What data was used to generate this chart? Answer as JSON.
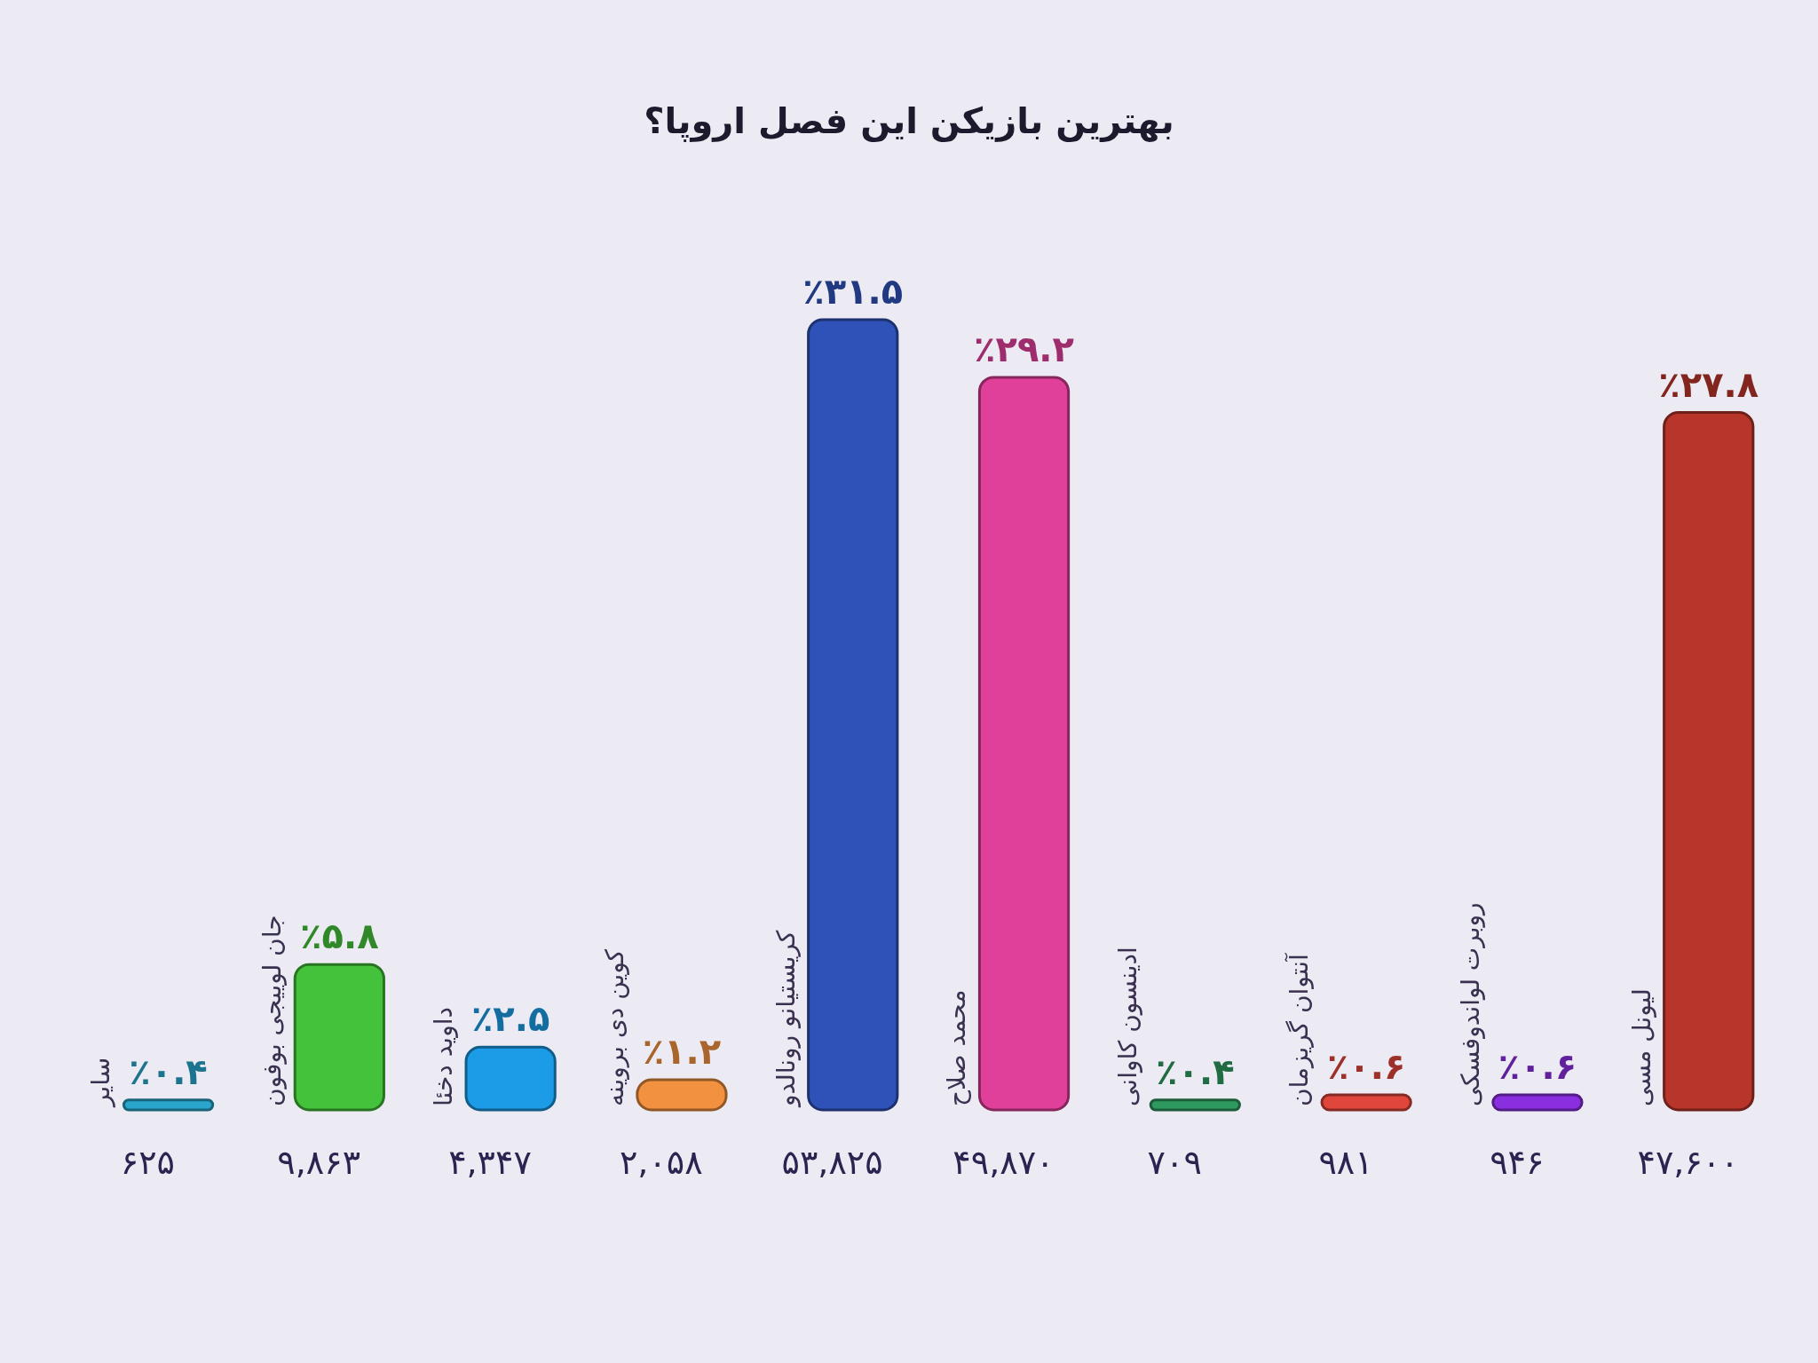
{
  "chart_data": {
    "type": "bar",
    "title": "بهترین بازیکن این فصل اروپا؟",
    "categories": [
      "سایر",
      "جان لوییجی بوفون",
      "داوید دخئا",
      "کوین دی بروینه",
      "کریستیانو رونالدو",
      "محمد صلاح",
      "ادینسون کاوانی",
      "آنتوان گریزمان",
      "روبرت لواندوفسکی",
      "لیونل مسی"
    ],
    "values": [
      0.4,
      5.8,
      2.5,
      1.2,
      31.5,
      29.2,
      0.4,
      0.6,
      0.6,
      27.8
    ],
    "value_labels": [
      "٪۰.۴",
      "٪۵.۸",
      "٪۲.۵",
      "٪۱.۲",
      "٪۳۱.۵",
      "٪۲۹.۲",
      "٪۰.۴",
      "٪۰.۶",
      "٪۰.۶",
      "٪۲۷.۸"
    ],
    "colors": [
      "#2aa6cc",
      "#45c23b",
      "#1c9be6",
      "#f2913f",
      "#2e52b8",
      "#e0409a",
      "#2e9a60",
      "#e0463c",
      "#8a2fe0",
      "#b8352b"
    ],
    "annotations": [
      "۶۲۵",
      "۹,۸۶۳",
      "۴,۳۴۷",
      "۲,۰۵۸",
      "۵۳,۸۲۵",
      "۴۹,۸۷۰",
      "۷۰۹",
      "۹۸۱",
      "۹۴۶",
      "۴۷,۶۰۰"
    ]
  }
}
